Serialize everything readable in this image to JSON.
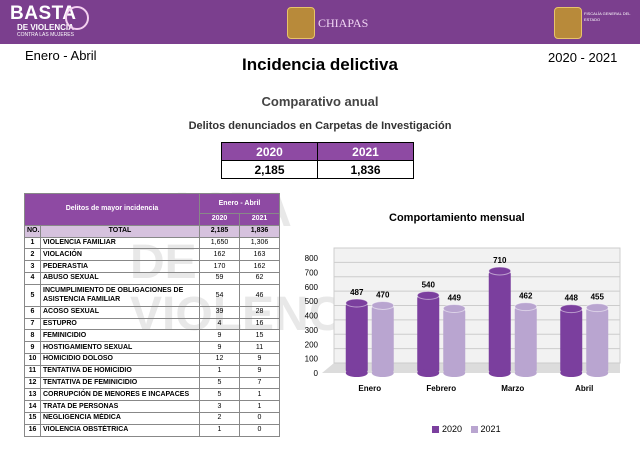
{
  "header": {
    "logo_left_line1": "BASTA",
    "logo_left_line2": "DE VIOLENCIA",
    "logo_left_line3": "CONTRA LAS MUJERES",
    "logo_mid_text": "CHIAPAS",
    "logo_right_text": "FISCALÍA GENERAL DEL ESTADO"
  },
  "page": {
    "period_left": "Enero - Abril",
    "period_right": "2020 - 2021",
    "title": "Incidencia delictiva",
    "subtitle": "Comparativo anual",
    "subtitle2": "Delitos denunciados en Carpetas de Investigación"
  },
  "summary": {
    "headers": [
      "2020",
      "2021"
    ],
    "values": [
      "2,185",
      "1,836"
    ]
  },
  "table": {
    "title": "Delitos de mayor incidencia",
    "period": "Enero - Abril",
    "year1": "2020",
    "year2": "2021",
    "no_label": "NO.",
    "total_label": "TOTAL",
    "total_2020": "2,185",
    "total_2021": "1,836",
    "rows": [
      {
        "no": "1",
        "name": "VIOLENCIA FAMILIAR",
        "v2020": "1,650",
        "v2021": "1,306"
      },
      {
        "no": "2",
        "name": "VIOLACIÓN",
        "v2020": "162",
        "v2021": "163"
      },
      {
        "no": "3",
        "name": "PEDERASTIA",
        "v2020": "170",
        "v2021": "162"
      },
      {
        "no": "4",
        "name": "ABUSO SEXUAL",
        "v2020": "59",
        "v2021": "62"
      },
      {
        "no": "5",
        "name": "INCUMPLIMIENTO DE OBLIGACIONES DE ASISTENCIA FAMILIAR",
        "v2020": "54",
        "v2021": "46"
      },
      {
        "no": "6",
        "name": "ACOSO SEXUAL",
        "v2020": "39",
        "v2021": "28"
      },
      {
        "no": "7",
        "name": "ESTUPRO",
        "v2020": "4",
        "v2021": "16"
      },
      {
        "no": "8",
        "name": "FEMINICIDIO",
        "v2020": "9",
        "v2021": "15"
      },
      {
        "no": "9",
        "name": "HOSTIGAMIENTO SEXUAL",
        "v2020": "9",
        "v2021": "11"
      },
      {
        "no": "10",
        "name": "HOMICIDIO DOLOSO",
        "v2020": "12",
        "v2021": "9"
      },
      {
        "no": "11",
        "name": "TENTATIVA DE HOMICIDIO",
        "v2020": "1",
        "v2021": "9"
      },
      {
        "no": "12",
        "name": "TENTATIVA DE FEMINICIDIO",
        "v2020": "5",
        "v2021": "7"
      },
      {
        "no": "13",
        "name": "CORRUPCIÓN DE MENORES E INCAPACES",
        "v2020": "5",
        "v2021": "1"
      },
      {
        "no": "14",
        "name": "TRATA DE PERSONAS",
        "v2020": "3",
        "v2021": "1"
      },
      {
        "no": "15",
        "name": "NEGLIGENCIA MÉDICA",
        "v2020": "2",
        "v2021": "0"
      },
      {
        "no": "16",
        "name": "VIOLENCIA OBSTÉTRICA",
        "v2020": "1",
        "v2021": "0"
      }
    ]
  },
  "watermark": "BASTA DE VIOLENCIA",
  "chart_data": {
    "type": "bar",
    "title": "Comportamiento mensual",
    "categories": [
      "Enero",
      "Febrero",
      "Marzo",
      "Abril"
    ],
    "series": [
      {
        "name": "2020",
        "values": [
          487,
          540,
          710,
          448
        ],
        "color": "#7b3f9e"
      },
      {
        "name": "2021",
        "values": [
          470,
          449,
          462,
          455
        ],
        "color": "#b9a5d0"
      }
    ],
    "ylim": [
      0,
      800
    ],
    "yticks": [
      "0",
      "100",
      "200",
      "300",
      "400",
      "500",
      "600",
      "700",
      "800"
    ],
    "grid": true,
    "legend": "bottom"
  }
}
